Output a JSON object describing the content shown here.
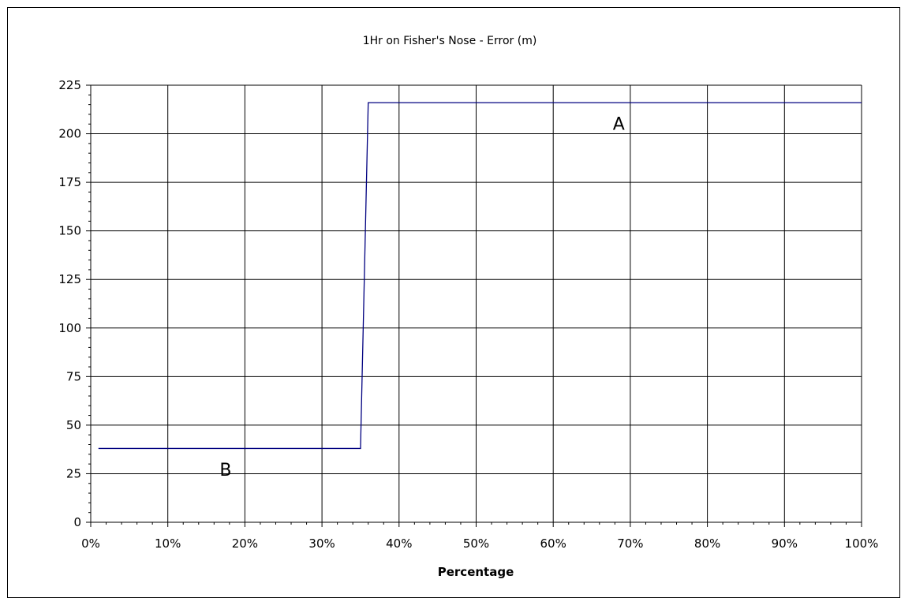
{
  "chart_data": {
    "type": "line",
    "title": "1Hr on Fisher's Nose - Error (m)",
    "xlabel": "Percentage",
    "ylabel": "",
    "xlim": [
      0,
      100
    ],
    "ylim": [
      0,
      225
    ],
    "x_ticks": [
      "0%",
      "10%",
      "20%",
      "30%",
      "40%",
      "50%",
      "60%",
      "70%",
      "80%",
      "90%",
      "100%"
    ],
    "x_tick_values": [
      0,
      10,
      20,
      30,
      40,
      50,
      60,
      70,
      80,
      90,
      100
    ],
    "y_ticks": [
      "0",
      "25",
      "50",
      "75",
      "100",
      "125",
      "150",
      "175",
      "200",
      "225"
    ],
    "y_tick_values": [
      0,
      25,
      50,
      75,
      100,
      125,
      150,
      175,
      200,
      225
    ],
    "grid": true,
    "series": [
      {
        "x": [
          1,
          35,
          36,
          100
        ],
        "y": [
          38,
          38,
          216,
          216
        ]
      }
    ],
    "annotations": [
      {
        "text": "A",
        "x": 68.5,
        "y": 202
      },
      {
        "text": "B",
        "x": 17.5,
        "y": 24
      }
    ],
    "line_color": "#000080"
  }
}
